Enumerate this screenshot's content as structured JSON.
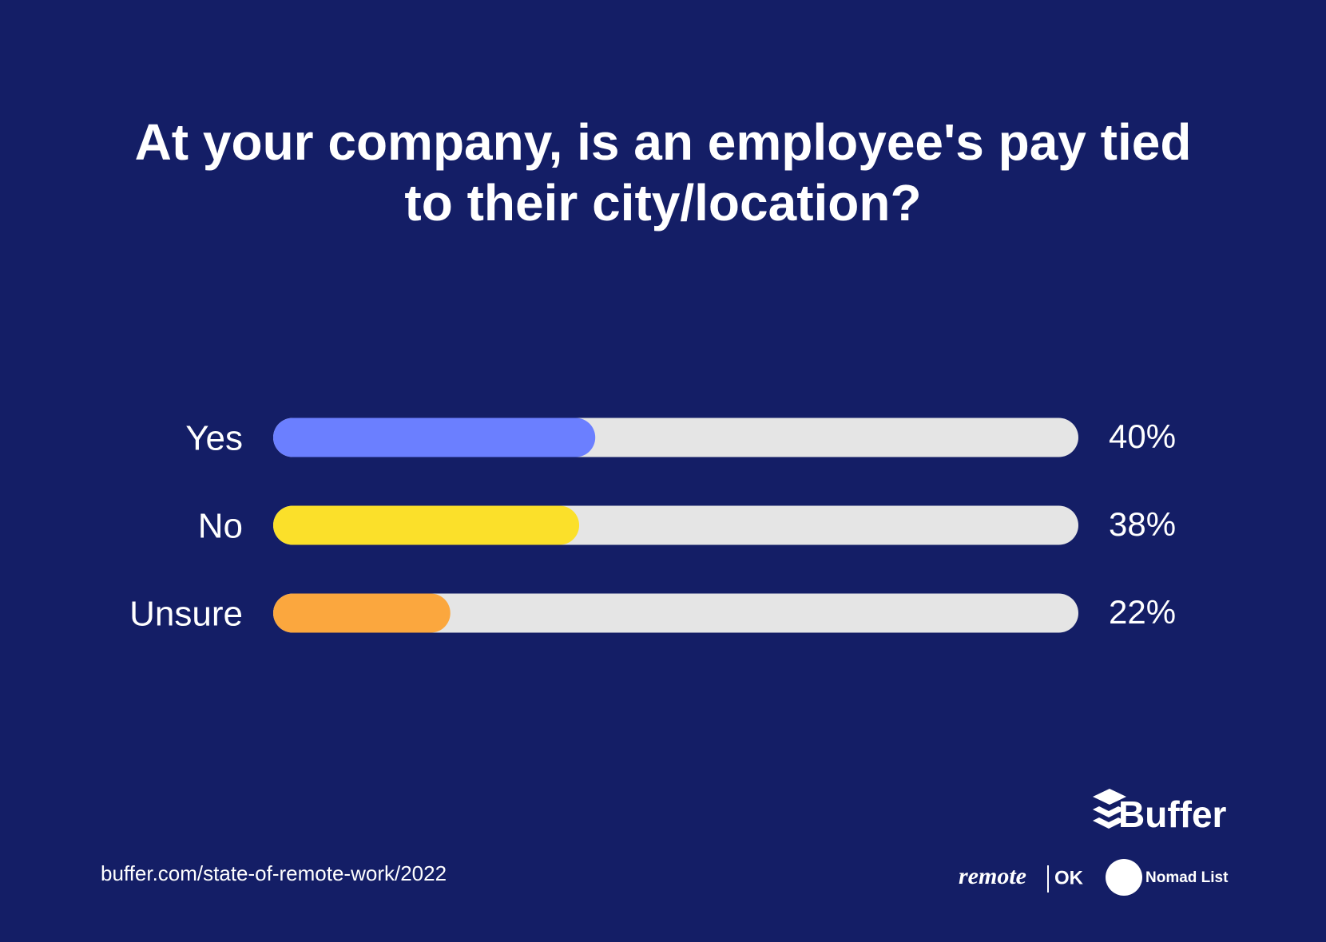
{
  "chart_data": {
    "type": "bar",
    "orientation": "horizontal",
    "title": "At your company, is an employee's pay tied to their city/location?",
    "categories": [
      "Yes",
      "No",
      "Unsure"
    ],
    "values": [
      40,
      38,
      22
    ],
    "value_labels": [
      "40%",
      "38%",
      "22%"
    ],
    "colors": [
      "#6b7fff",
      "#fbe02a",
      "#fba73e"
    ],
    "track_color": "#e5e5e5",
    "background": "#141e66",
    "xlim": [
      0,
      100
    ],
    "source": "buffer.com/state-of-remote-work/2022",
    "brands": [
      "Buffer",
      "remote",
      "OK",
      "Nomad List"
    ]
  }
}
